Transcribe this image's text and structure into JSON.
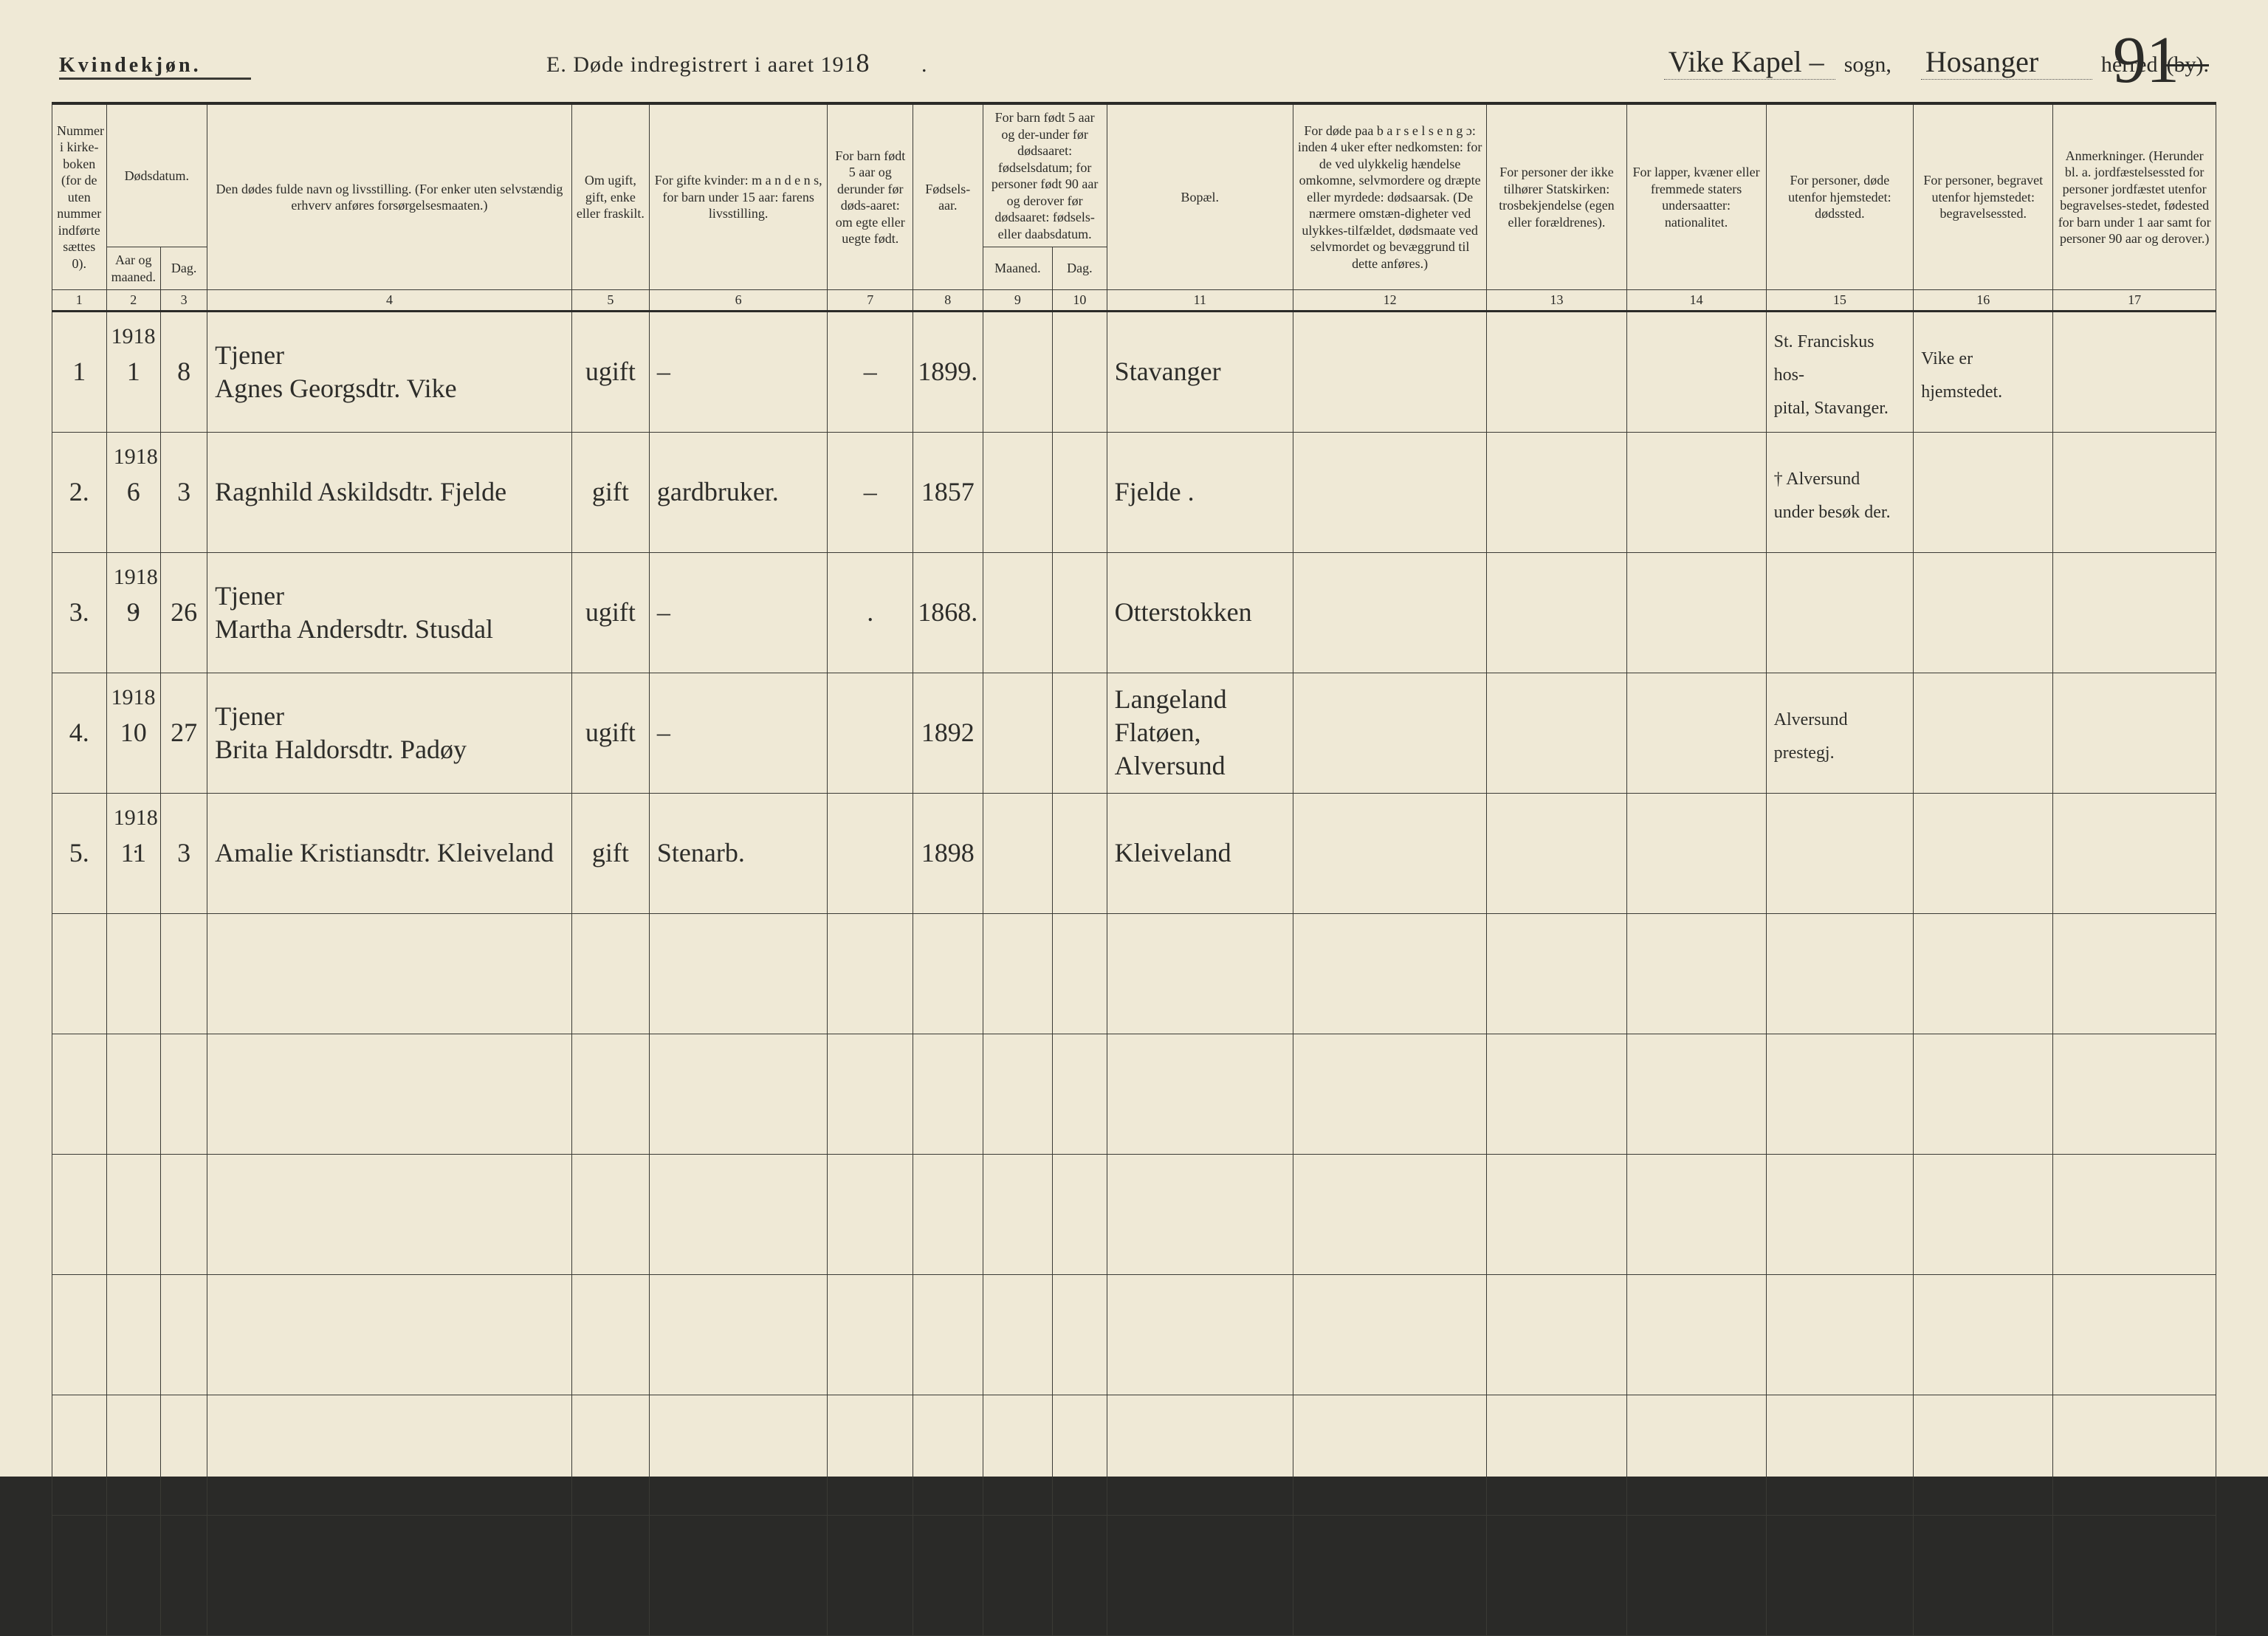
{
  "header": {
    "sex_label": "Kvindekjøn.",
    "title_prefix": "E.  Døde indregistrert i aaret 191",
    "title_year_suffix": "8",
    "title_period": " .",
    "sogn_value": "Vike  Kapel –",
    "sogn_label": "sogn,",
    "herred_value": "Hosanger",
    "herred_label": "hérred",
    "herred_struck": "(by).",
    "page_number": "91"
  },
  "columns": {
    "c1": "Nummer i kirke-boken (for de uten nummer indførte sættes 0).",
    "c2_top": "Dødsdatum.",
    "c2a": "Aar og maaned.",
    "c2b": "Dag.",
    "c4": "Den dødes fulde navn og livsstilling.\n(For enker uten selvstændig erhverv anføres forsørgelsesmaaten.)",
    "c5": "Om ugift, gift, enke eller fraskilt.",
    "c6": "For gifte kvinder: m a n d e n s, for barn under 15 aar: farens livsstilling.",
    "c7": "For barn født 5 aar og derunder før døds-aaret: om egte eller uegte født.",
    "c8": "Fødsels-aar.",
    "c9_top": "For barn født 5 aar og der-under før dødsaaret: fødselsdatum; for personer født 90 aar og derover før dødsaaret: fødsels- eller daabsdatum.",
    "c9a": "Maaned.",
    "c9b": "Dag.",
    "c11": "Bopæl.",
    "c12": "For døde paa b a r s e l s e n g ɔ: inden 4 uker efter nedkomsten: for de ved ulykkelig hændelse omkomne, selvmordere og dræpte eller myrdede: dødsaarsak. (De nærmere omstæn-digheter ved ulykkes-tilfældet, dødsmaate ved selvmordet og bevæggrund til dette anføres.)",
    "c13": "For personer der ikke tilhører Statskirken: trosbekjendelse (egen eller forældrenes).",
    "c14": "For lapper, kvæner eller fremmede staters undersaatter: nationalitet.",
    "c15": "For personer, døde utenfor hjemstedet: dødssted.",
    "c16": "For personer, begravet utenfor hjemstedet: begravelsessted.",
    "c17": "Anmerkninger. (Herunder bl. a. jordfæstelsessted for personer jordfæstet utenfor begravelses-stedet, fødested for barn under 1 aar samt for personer 90 aar og derover.)"
  },
  "col_index": [
    "1",
    "2",
    "3",
    "4",
    "5",
    "6",
    "7",
    "8",
    "9",
    "10",
    "11",
    "12",
    "13",
    "14",
    "15",
    "16",
    "17"
  ],
  "rows": [
    {
      "year": "1918",
      "num": "1",
      "month": "1",
      "day": "8",
      "name": "Tjener\nAgnes Georgsdtr. Vike",
      "status": "ugift",
      "spouse": "–",
      "legit": "–",
      "birth_year": "1899.",
      "b_m": "",
      "b_d": "",
      "residence": "Stavanger",
      "cause": "",
      "faith": "",
      "nat": "",
      "death_place": "St. Franciskus hos-\npital, Stavanger.",
      "burial_place": "Vike er\nhjemstedet.",
      "remarks": ""
    },
    {
      "year": "1918 .",
      "num": "2.",
      "month": "6",
      "day": "3",
      "name": "Ragnhild Askildsdtr. Fjelde",
      "status": "gift",
      "spouse": "gardbruker.",
      "legit": "–",
      "birth_year": "1857",
      "b_m": "",
      "b_d": "",
      "residence": "Fjelde .",
      "cause": "",
      "faith": "",
      "nat": "",
      "death_place": "† Alversund\nunder besøk der.",
      "burial_place": "",
      "remarks": ""
    },
    {
      "year": "1918 .",
      "num": "3.",
      "month": "9",
      "day": "26",
      "name": "Tjener\nMartha Andersdtr. Stusdal",
      "status": "ugift",
      "spouse": "–",
      "legit": ".",
      "birth_year": "1868.",
      "b_m": "",
      "b_d": "",
      "residence": "Otterstokken",
      "cause": "",
      "faith": "",
      "nat": "",
      "death_place": "",
      "burial_place": "",
      "remarks": ""
    },
    {
      "year": "1918",
      "num": "4.",
      "month": "10",
      "day": "27",
      "name": "Tjener\nBrita Haldorsdtr. Padøy",
      "status": "ugift",
      "spouse": "–",
      "legit": "",
      "birth_year": "1892",
      "b_m": "",
      "b_d": "",
      "residence": "Langeland\nFlatøen, Alversund",
      "cause": "",
      "faith": "",
      "nat": "",
      "death_place": "Alversund\nprestegj.",
      "burial_place": "",
      "remarks": ""
    },
    {
      "year": "1918 .",
      "num": "5.",
      "month": "11",
      "day": "3",
      "name": "Amalie Kristiansdtr. Kleiveland",
      "status": "gift",
      "spouse": "Stenarb.",
      "legit": "",
      "birth_year": "1898",
      "b_m": "",
      "b_d": "",
      "residence": "Kleiveland",
      "cause": "",
      "faith": "",
      "nat": "",
      "death_place": "",
      "burial_place": "",
      "remarks": ""
    }
  ],
  "empty_rows": 6
}
